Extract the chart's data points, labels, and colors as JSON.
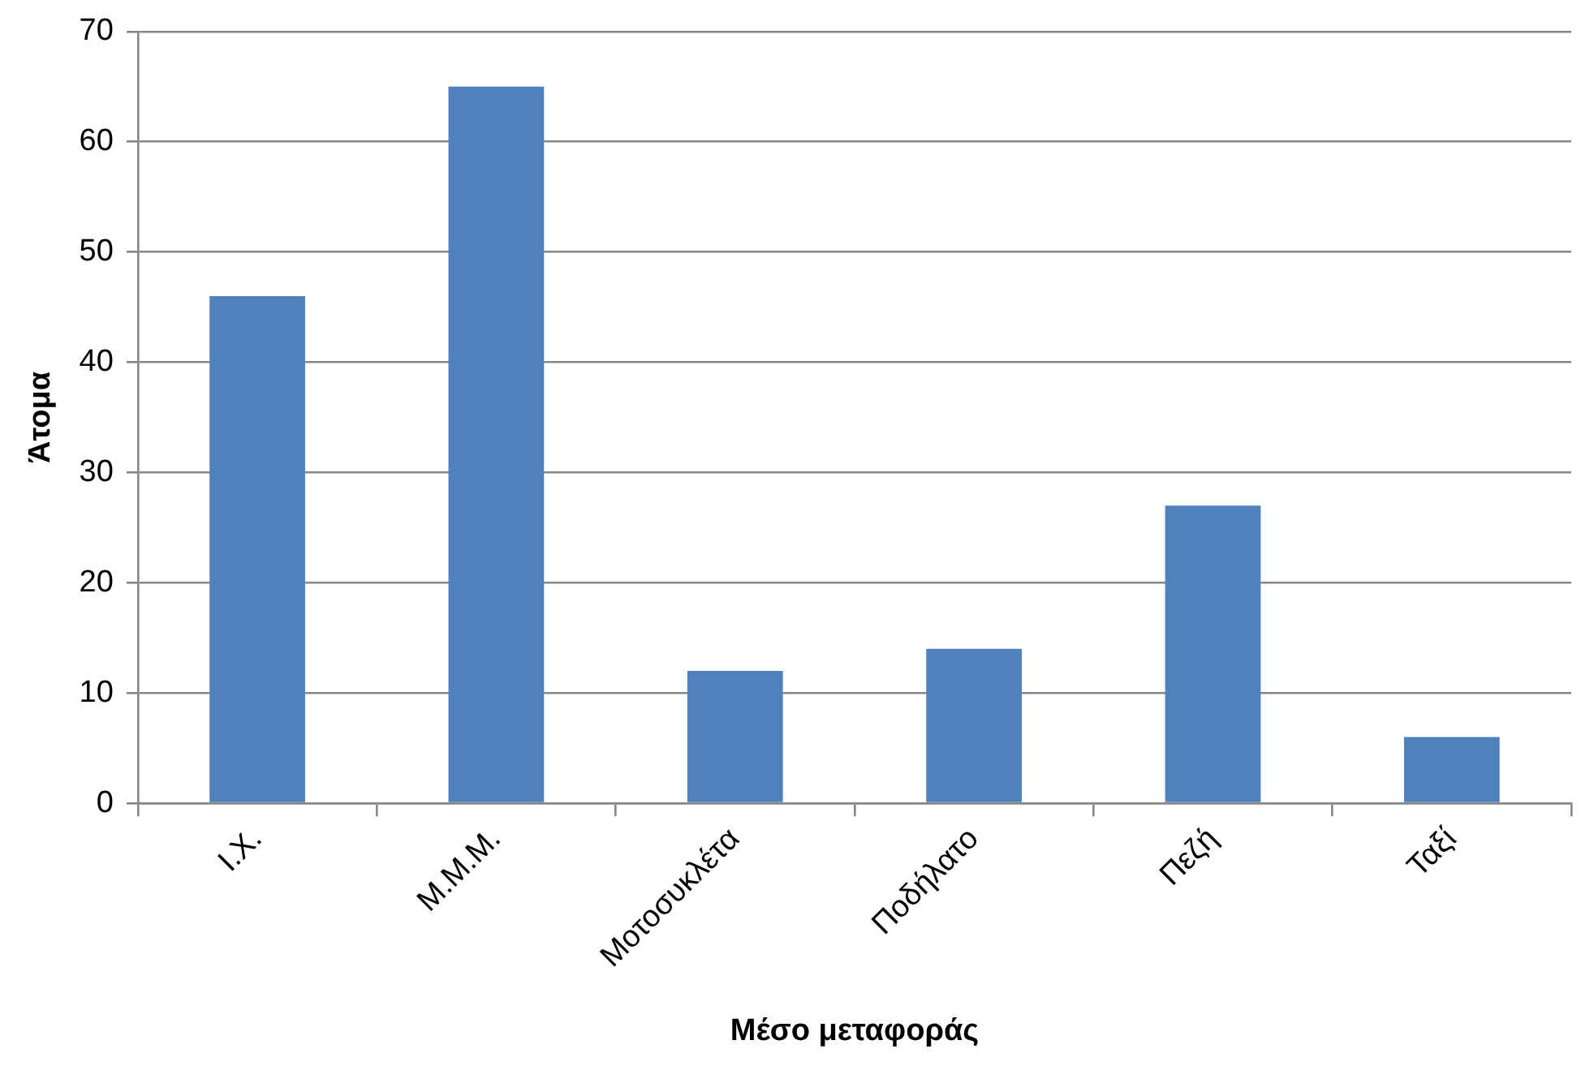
{
  "chart_data": {
    "type": "bar",
    "xlabel": "Μέσο μεταφοράς",
    "ylabel": "Άτομα",
    "categories": [
      "Ι.Χ.",
      "Μ.Μ.Μ.",
      "Μοτοσυκλέτα",
      "Ποδήλατο",
      "Πεζή",
      "Ταξί"
    ],
    "values": [
      46,
      65,
      12,
      14,
      27,
      6
    ],
    "color": "#4f81bd",
    "ylim": [
      0,
      70
    ],
    "yticks": [
      0,
      10,
      20,
      30,
      40,
      50,
      60,
      70
    ],
    "grid": "y",
    "legend": false
  }
}
